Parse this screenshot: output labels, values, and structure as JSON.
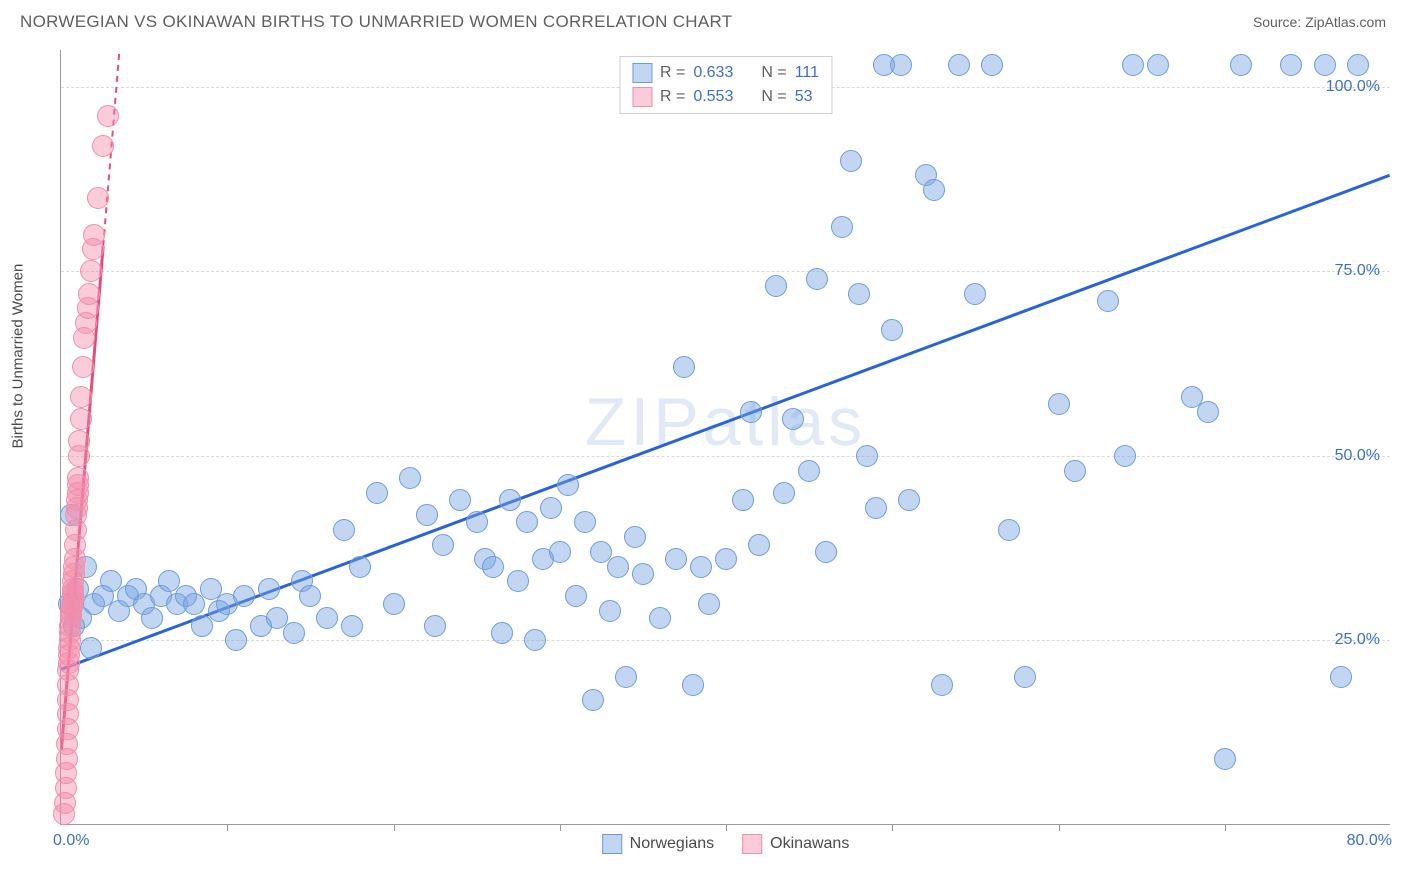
{
  "header": {
    "title": "NORWEGIAN VS OKINAWAN BIRTHS TO UNMARRIED WOMEN CORRELATION CHART",
    "source": "Source: ZipAtlas.com"
  },
  "chart": {
    "type": "scatter",
    "ylabel": "Births to Unmarried Women",
    "watermark": "ZIPatlas",
    "background_color": "#ffffff",
    "grid_color": "#d9d9d9",
    "axis_color": "#9a9a9a",
    "tick_label_color": "#3b6fc9",
    "text_color": "#5f5f5f",
    "marker_radius": 11,
    "xlim": [
      0,
      80
    ],
    "ylim": [
      0,
      105
    ],
    "xlim_labels": [
      "0.0%",
      "80.0%"
    ],
    "ytick_values": [
      25,
      50,
      75,
      100
    ],
    "ytick_labels": [
      "25.0%",
      "50.0%",
      "75.0%",
      "100.0%"
    ],
    "xtick_values": [
      10,
      20,
      30,
      40,
      50,
      60,
      70
    ],
    "series": [
      {
        "id": "norwegians",
        "label": "Norwegians",
        "color_fill": "rgba(120,165,225,0.45)",
        "color_stroke": "#6c9ce0",
        "trend_color": "#2962d9",
        "trend_width": 3,
        "trend": {
          "x1": 0,
          "y1": 21,
          "x2": 80,
          "y2": 88
        },
        "stats": {
          "R": "0.633",
          "N": "111"
        },
        "points": [
          [
            0.5,
            30
          ],
          [
            0.6,
            42
          ],
          [
            0.8,
            27
          ],
          [
            1,
            32
          ],
          [
            1.2,
            28
          ],
          [
            1.5,
            35
          ],
          [
            1.8,
            24
          ],
          [
            2,
            30
          ],
          [
            2.5,
            31
          ],
          [
            3,
            33
          ],
          [
            3.5,
            29
          ],
          [
            4,
            31
          ],
          [
            4.5,
            32
          ],
          [
            5,
            30
          ],
          [
            5.5,
            28
          ],
          [
            6,
            31
          ],
          [
            6.5,
            33
          ],
          [
            7,
            30
          ],
          [
            7.5,
            31
          ],
          [
            8,
            30
          ],
          [
            8.5,
            27
          ],
          [
            9,
            32
          ],
          [
            9.5,
            29
          ],
          [
            10,
            30
          ],
          [
            10.5,
            25
          ],
          [
            11,
            31
          ],
          [
            12,
            27
          ],
          [
            12.5,
            32
          ],
          [
            13,
            28
          ],
          [
            14,
            26
          ],
          [
            14.5,
            33
          ],
          [
            15,
            31
          ],
          [
            16,
            28
          ],
          [
            17,
            40
          ],
          [
            17.5,
            27
          ],
          [
            18,
            35
          ],
          [
            19,
            45
          ],
          [
            20,
            30
          ],
          [
            21,
            47
          ],
          [
            22,
            42
          ],
          [
            22.5,
            27
          ],
          [
            23,
            38
          ],
          [
            24,
            44
          ],
          [
            25,
            41
          ],
          [
            25.5,
            36
          ],
          [
            26,
            35
          ],
          [
            26.5,
            26
          ],
          [
            27,
            44
          ],
          [
            27.5,
            33
          ],
          [
            28,
            41
          ],
          [
            28.5,
            25
          ],
          [
            29,
            36
          ],
          [
            29.5,
            43
          ],
          [
            30,
            37
          ],
          [
            30.5,
            46
          ],
          [
            31,
            31
          ],
          [
            31.5,
            41
          ],
          [
            32,
            17
          ],
          [
            32.5,
            37
          ],
          [
            33,
            29
          ],
          [
            33.5,
            35
          ],
          [
            34,
            20
          ],
          [
            34.5,
            39
          ],
          [
            35,
            34
          ],
          [
            36,
            28
          ],
          [
            37,
            36
          ],
          [
            37.5,
            62
          ],
          [
            38,
            19
          ],
          [
            38.5,
            35
          ],
          [
            39,
            30
          ],
          [
            40,
            36
          ],
          [
            41,
            44
          ],
          [
            41.5,
            56
          ],
          [
            42,
            38
          ],
          [
            43,
            73
          ],
          [
            43.5,
            45
          ],
          [
            44,
            55
          ],
          [
            45,
            48
          ],
          [
            45.5,
            74
          ],
          [
            46,
            37
          ],
          [
            47,
            81
          ],
          [
            47.5,
            90
          ],
          [
            48,
            72
          ],
          [
            48.5,
            50
          ],
          [
            49,
            43
          ],
          [
            49.5,
            103
          ],
          [
            50,
            67
          ],
          [
            50.5,
            103
          ],
          [
            51,
            44
          ],
          [
            52,
            88
          ],
          [
            52.5,
            86
          ],
          [
            53,
            19
          ],
          [
            54,
            103
          ],
          [
            55,
            72
          ],
          [
            56,
            103
          ],
          [
            57,
            40
          ],
          [
            58,
            20
          ],
          [
            60,
            57
          ],
          [
            61,
            48
          ],
          [
            63,
            71
          ],
          [
            64,
            50
          ],
          [
            64.5,
            103
          ],
          [
            66,
            103
          ],
          [
            68,
            58
          ],
          [
            69,
            56
          ],
          [
            70,
            9
          ],
          [
            71,
            103
          ],
          [
            74,
            103
          ],
          [
            76,
            103
          ],
          [
            77,
            20
          ],
          [
            78,
            103
          ]
        ]
      },
      {
        "id": "okinawans",
        "label": "Okinawans",
        "color_fill": "rgba(245,140,170,0.45)",
        "color_stroke": "#ef8fae",
        "trend_color": "#e84a80",
        "trend_width": 3,
        "trend_dash": "6 5",
        "trend": {
          "x1": 0,
          "y1": 10,
          "x2": 3.5,
          "y2": 105
        },
        "trend_solid_until": 0.72,
        "stats": {
          "R": "0.553",
          "N": "53"
        },
        "points": [
          [
            0.2,
            1.5
          ],
          [
            0.25,
            3
          ],
          [
            0.3,
            5
          ],
          [
            0.3,
            7
          ],
          [
            0.35,
            9
          ],
          [
            0.35,
            11
          ],
          [
            0.4,
            13
          ],
          [
            0.4,
            15
          ],
          [
            0.4,
            17
          ],
          [
            0.45,
            19
          ],
          [
            0.45,
            21
          ],
          [
            0.5,
            22
          ],
          [
            0.5,
            23
          ],
          [
            0.5,
            24
          ],
          [
            0.55,
            25
          ],
          [
            0.55,
            26
          ],
          [
            0.55,
            27
          ],
          [
            0.6,
            28
          ],
          [
            0.6,
            28.5
          ],
          [
            0.6,
            29
          ],
          [
            0.65,
            29.5
          ],
          [
            0.65,
            30
          ],
          [
            0.7,
            30.5
          ],
          [
            0.7,
            31
          ],
          [
            0.7,
            31.5
          ],
          [
            0.75,
            32
          ],
          [
            0.75,
            33
          ],
          [
            0.8,
            34
          ],
          [
            0.8,
            35
          ],
          [
            0.85,
            36
          ],
          [
            0.85,
            38
          ],
          [
            0.9,
            40
          ],
          [
            0.9,
            42
          ],
          [
            0.95,
            43
          ],
          [
            0.95,
            44
          ],
          [
            1,
            45
          ],
          [
            1,
            46
          ],
          [
            1.05,
            47
          ],
          [
            1.1,
            50
          ],
          [
            1.1,
            52
          ],
          [
            1.2,
            55
          ],
          [
            1.2,
            58
          ],
          [
            1.3,
            62
          ],
          [
            1.4,
            66
          ],
          [
            1.5,
            68
          ],
          [
            1.6,
            70
          ],
          [
            1.7,
            72
          ],
          [
            1.8,
            75
          ],
          [
            1.9,
            78
          ],
          [
            2.0,
            80
          ],
          [
            2.2,
            85
          ],
          [
            2.5,
            92
          ],
          [
            2.8,
            96
          ]
        ]
      }
    ],
    "legend_top": {
      "r_label": "R =",
      "n_label": "N ="
    },
    "legend_bottom": [
      "Norwegians",
      "Okinawans"
    ]
  }
}
